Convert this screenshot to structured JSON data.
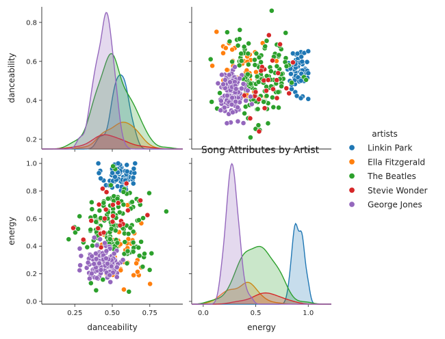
{
  "chart_data": {
    "type": "pairplot",
    "title": "Song Attributes by Artist",
    "variables": [
      "danceability",
      "energy"
    ],
    "legend": {
      "title": "artists",
      "placement": "right",
      "entries": [
        {
          "name": "Linkin Park",
          "color": "#1f77b4"
        },
        {
          "name": "Ella Fitzgerald",
          "color": "#ff7f0e"
        },
        {
          "name": "The Beatles",
          "color": "#2ca02c"
        },
        {
          "name": "Stevie Wonder",
          "color": "#d62728"
        },
        {
          "name": "George Jones",
          "color": "#9467bd"
        }
      ]
    },
    "axes": {
      "danceability": {
        "range": [
          0.03,
          0.97
        ],
        "ticks": [
          0.25,
          0.5,
          0.75
        ],
        "tick_labels": [
          "0.25",
          "0.50",
          "0.75"
        ]
      },
      "energy": {
        "range": [
          -0.11,
          1.22
        ],
        "ticks": [
          0.0,
          0.5,
          1.0
        ],
        "tick_labels": [
          "0.0",
          "0.5",
          "1.0"
        ]
      },
      "danceability_row": {
        "range": [
          0.15,
          0.88
        ],
        "ticks": [
          0.2,
          0.4,
          0.6,
          0.8
        ],
        "tick_labels": [
          "0.2",
          "0.4",
          "0.6",
          "0.8"
        ]
      },
      "energy_row": {
        "range": [
          -0.02,
          1.04
        ],
        "ticks": [
          0.0,
          0.2,
          0.4,
          0.6,
          0.8,
          1.0
        ],
        "tick_labels": [
          "0.0",
          "0.2",
          "0.4",
          "0.6",
          "0.8",
          "1.0"
        ]
      }
    },
    "series": [
      {
        "name": "Linkin Park",
        "n": 70,
        "danceability": {
          "mean": 0.54,
          "sd": 0.055
        },
        "energy": {
          "mean": 0.91,
          "sd": 0.055
        },
        "kde_danceability_peak": 0.52,
        "kde_energy_peak": 0.93,
        "kde_energy_secondary": 0.7
      },
      {
        "name": "Ella Fitzgerald",
        "n": 45,
        "danceability": {
          "mean": 0.55,
          "sd": 0.11
        },
        "energy": {
          "mean": 0.4,
          "sd": 0.15
        },
        "kde_danceability_peak": 0.58,
        "kde_energy_peak": 0.52
      },
      {
        "name": "The Beatles",
        "n": 160,
        "danceability": {
          "mean": 0.52,
          "sd": 0.11
        },
        "energy": {
          "mean": 0.52,
          "sd": 0.17
        },
        "kde_danceability_peak": 0.5,
        "kde_energy_peak": 0.53
      },
      {
        "name": "Stevie Wonder",
        "n": 25,
        "danceability": {
          "mean": 0.48,
          "sd": 0.1
        },
        "energy": {
          "mean": 0.58,
          "sd": 0.14
        },
        "kde_danceability_peak": 0.44,
        "kde_energy_peak": 0.68
      },
      {
        "name": "George Jones",
        "n": 130,
        "danceability": {
          "mean": 0.45,
          "sd": 0.065
        },
        "energy": {
          "mean": 0.28,
          "sd": 0.065
        },
        "kde_danceability_peak": 0.44,
        "kde_energy_peak": 0.28
      }
    ]
  }
}
